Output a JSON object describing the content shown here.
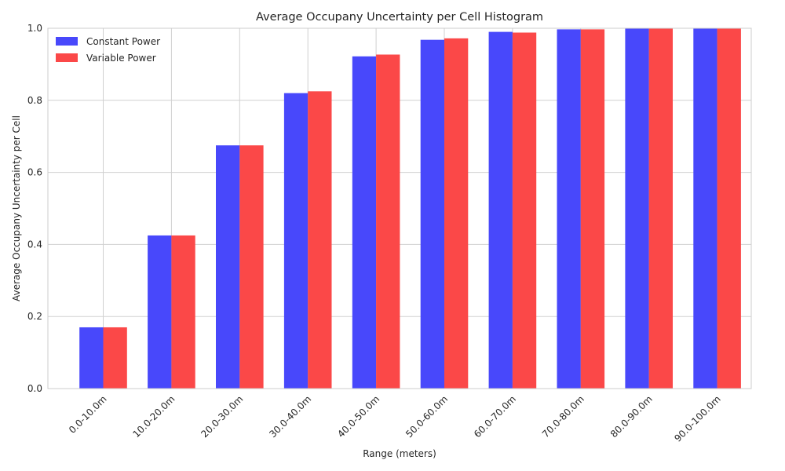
{
  "chart_data": {
    "type": "bar",
    "title": "Average Occupany Uncertainty per Cell Histogram",
    "xlabel": "Range (meters)",
    "ylabel": "Average Occupany Uncertainty per Cell",
    "ylim": [
      0,
      1.0
    ],
    "yticks": [
      "0.0",
      "0.2",
      "0.4",
      "0.6",
      "0.8",
      "1.0"
    ],
    "grid": true,
    "legend_position": "top-left",
    "categories": [
      "0.0-10.0m",
      "10.0-20.0m",
      "20.0-30.0m",
      "30.0-40.0m",
      "40.0-50.0m",
      "50.0-60.0m",
      "60.0-70.0m",
      "70.0-80.0m",
      "80.0-90.0m",
      "90.0-100.0m"
    ],
    "series": [
      {
        "name": "Constant Power",
        "color": "#4848fb",
        "values": [
          0.17,
          0.425,
          0.675,
          0.82,
          0.922,
          0.968,
          0.99,
          0.997,
          0.999,
          1.0
        ]
      },
      {
        "name": "Variable Power",
        "color": "#fb4848",
        "values": [
          0.17,
          0.425,
          0.675,
          0.825,
          0.927,
          0.972,
          0.988,
          0.997,
          0.999,
          1.0
        ]
      }
    ]
  }
}
